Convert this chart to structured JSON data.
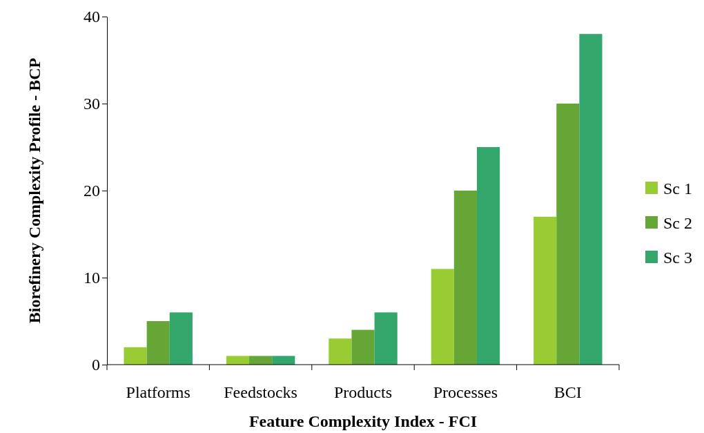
{
  "chart_data": {
    "type": "bar",
    "xlabel": "Feature Complexity Index - FCI",
    "ylabel": "Biorefinery Complexity Profile - BCP",
    "categories": [
      "Platforms",
      "Feedstocks",
      "Products",
      "Processes",
      "BCI"
    ],
    "series": [
      {
        "name": "Sc 1",
        "color": "#99cc33",
        "values": [
          2,
          1,
          3,
          11,
          17
        ]
      },
      {
        "name": "Sc 2",
        "color": "#66a636",
        "values": [
          5,
          1,
          4,
          20,
          30
        ]
      },
      {
        "name": "Sc 3",
        "color": "#33a66c",
        "values": [
          6,
          1,
          6,
          25,
          38
        ]
      }
    ],
    "ylim": [
      0,
      40
    ],
    "yticks": [
      0,
      10,
      20,
      30,
      40
    ],
    "grid": false,
    "legend": "right"
  }
}
